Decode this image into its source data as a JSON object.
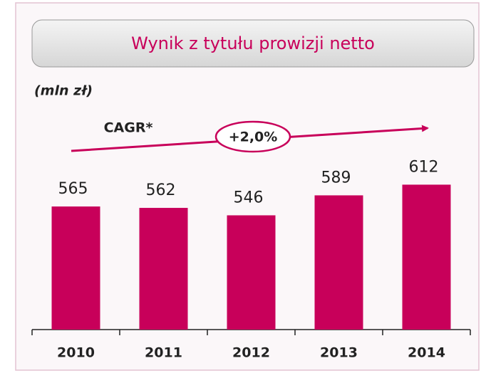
{
  "chart_data": {
    "type": "bar",
    "title": "Wynik z tytułu prowizji netto",
    "subtitle": "(mln zł)",
    "annotations": [
      "CAGR*",
      "+2,0%"
    ],
    "categories": [
      "2010",
      "2011",
      "2012",
      "2013",
      "2014"
    ],
    "values": [
      565,
      562,
      546,
      589,
      612
    ],
    "color": "#c8005a",
    "ylim": [
      300,
      700
    ]
  }
}
